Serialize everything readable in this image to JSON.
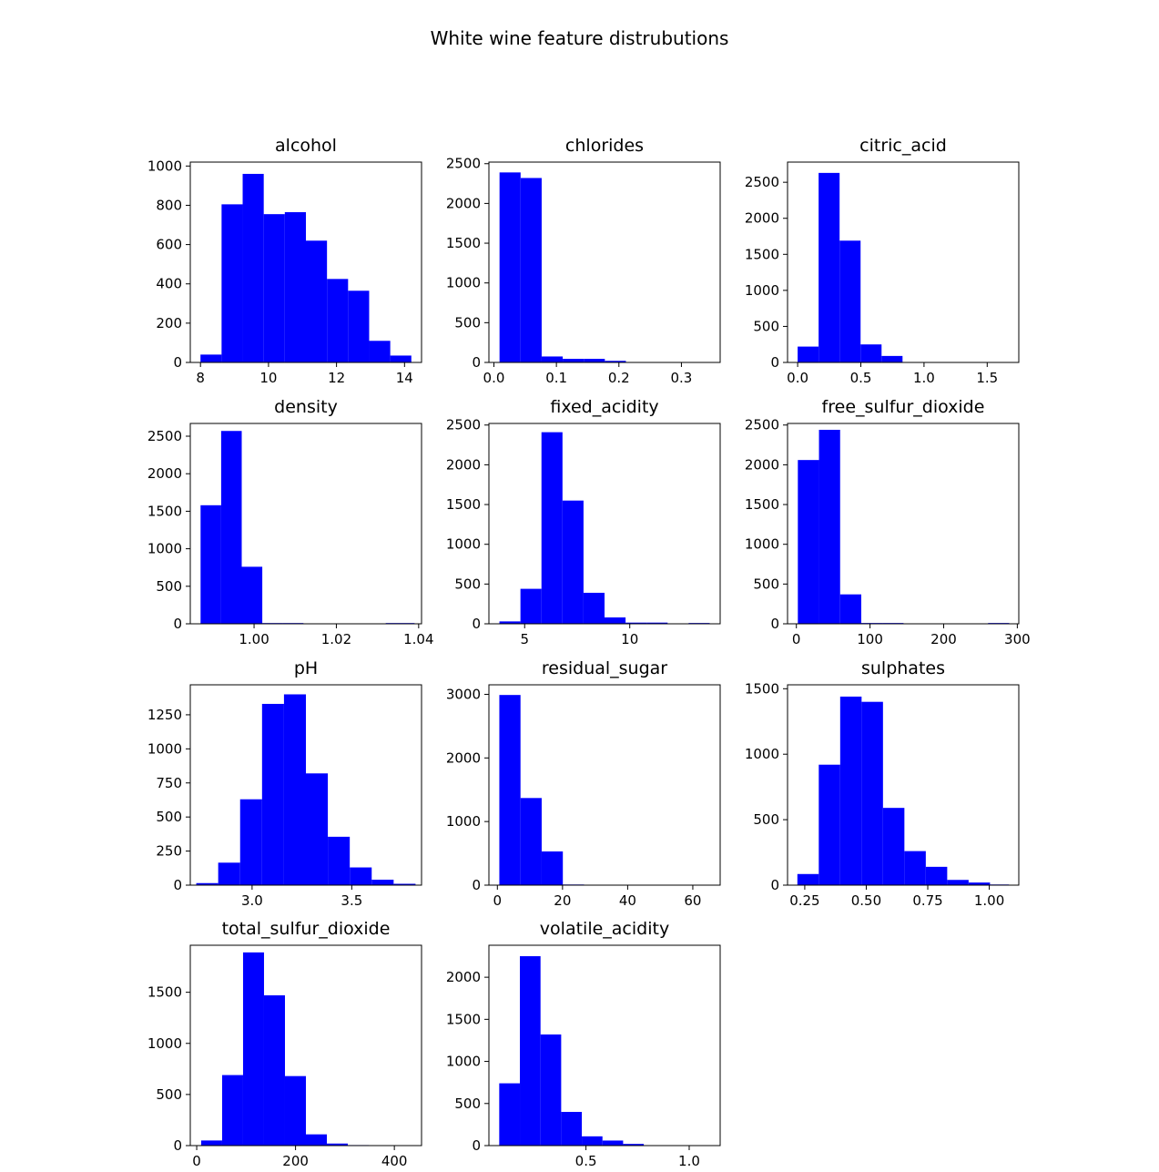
{
  "suptitle": "White wine feature distrubutions",
  "bar_color": "#0000ff",
  "chart_data": [
    {
      "type": "bar",
      "title": "alcohol",
      "xlim": [
        7.7,
        14.5
      ],
      "ylim": [
        0,
        1020
      ],
      "xticks": [
        8,
        10,
        12,
        14
      ],
      "xticklabels": [
        "8",
        "10",
        "12",
        "14"
      ],
      "yticks": [
        0,
        200,
        400,
        600,
        800,
        1000
      ],
      "yticklabels": [
        "0",
        "200",
        "400",
        "600",
        "800",
        "1000"
      ],
      "bin_edges": [
        8.0,
        8.62,
        9.24,
        9.86,
        10.48,
        11.1,
        11.72,
        12.34,
        12.96,
        13.58,
        14.2
      ],
      "values": [
        40,
        805,
        960,
        755,
        765,
        620,
        425,
        365,
        110,
        35
      ]
    },
    {
      "type": "bar",
      "title": "chlorides",
      "xlim": [
        -0.008,
        0.362
      ],
      "ylim": [
        0,
        2520
      ],
      "xticks": [
        0.0,
        0.1,
        0.2,
        0.3
      ],
      "xticklabels": [
        "0.0",
        "0.1",
        "0.2",
        "0.3"
      ],
      "yticks": [
        0,
        500,
        1000,
        1500,
        2000,
        2500
      ],
      "yticklabels": [
        "0",
        "500",
        "1000",
        "1500",
        "2000",
        "2500"
      ],
      "bin_edges": [
        0.009,
        0.0427,
        0.0764,
        0.1101,
        0.1438,
        0.1775,
        0.2112,
        0.2449,
        0.2786,
        0.3123,
        0.346
      ],
      "values": [
        2390,
        2320,
        75,
        45,
        45,
        20,
        5,
        2,
        2,
        2
      ]
    },
    {
      "type": "bar",
      "title": "citric_acid",
      "xlim": [
        -0.08,
        1.75
      ],
      "ylim": [
        0,
        2780
      ],
      "xticks": [
        0.0,
        0.5,
        1.0,
        1.5
      ],
      "xticklabels": [
        "0.0",
        "0.5",
        "1.0",
        "1.5"
      ],
      "yticks": [
        0,
        500,
        1000,
        1500,
        2000,
        2500
      ],
      "yticklabels": [
        "0",
        "500",
        "1000",
        "1500",
        "2000",
        "2500"
      ],
      "bin_edges": [
        0.0,
        0.166,
        0.332,
        0.498,
        0.664,
        0.83,
        0.996,
        1.162,
        1.328,
        1.494,
        1.66
      ],
      "values": [
        220,
        2630,
        1690,
        250,
        90,
        5,
        3,
        2,
        2,
        2
      ]
    },
    {
      "type": "bar",
      "title": "density",
      "xlim": [
        0.9845,
        1.0407
      ],
      "ylim": [
        0,
        2670
      ],
      "xticks": [
        1.0,
        1.02,
        1.04
      ],
      "xticklabels": [
        "1.00",
        "1.02",
        "1.04"
      ],
      "yticks": [
        0,
        500,
        1000,
        1500,
        2000,
        2500
      ],
      "yticklabels": [
        "0",
        "500",
        "1000",
        "1500",
        "2000",
        "2500"
      ],
      "bin_edges": [
        0.987,
        0.992,
        0.997,
        1.002,
        1.007,
        1.012,
        1.017,
        1.022,
        1.027,
        1.032,
        1.039
      ],
      "values": [
        1580,
        2570,
        760,
        10,
        10,
        0,
        0,
        0,
        0,
        10
      ]
    },
    {
      "type": "bar",
      "title": "fixed_acidity",
      "xlim": [
        3.3,
        14.3
      ],
      "ylim": [
        0,
        2520
      ],
      "xticks": [
        5,
        10
      ],
      "xticklabels": [
        "5",
        "10"
      ],
      "yticks": [
        0,
        500,
        1000,
        1500,
        2000,
        2500
      ],
      "yticklabels": [
        "0",
        "500",
        "1000",
        "1500",
        "2000",
        "2500"
      ],
      "bin_edges": [
        3.8,
        4.8,
        5.8,
        6.8,
        7.8,
        8.8,
        9.8,
        10.8,
        11.8,
        12.8,
        13.8
      ],
      "values": [
        30,
        440,
        2410,
        1550,
        390,
        80,
        15,
        15,
        5,
        10
      ]
    },
    {
      "type": "bar",
      "title": "free_sulfur_dioxide",
      "xlim": [
        -12,
        302
      ],
      "ylim": [
        0,
        2520
      ],
      "xticks": [
        0,
        100,
        200,
        300
      ],
      "xticklabels": [
        "0",
        "100",
        "200",
        "300"
      ],
      "yticks": [
        0,
        500,
        1000,
        1500,
        2000,
        2500
      ],
      "yticklabels": [
        "0",
        "500",
        "1000",
        "1500",
        "2000",
        "2500"
      ],
      "bin_edges": [
        2.0,
        30.7,
        59.4,
        88.1,
        116.8,
        145.5,
        174.2,
        202.9,
        231.6,
        260.3,
        289.0
      ],
      "values": [
        2060,
        2440,
        370,
        10,
        10,
        2,
        2,
        0,
        0,
        10
      ]
    },
    {
      "type": "bar",
      "title": "pH",
      "xlim": [
        2.69,
        3.85
      ],
      "ylim": [
        0,
        1470
      ],
      "xticks": [
        3.0,
        3.5
      ],
      "xticklabels": [
        "3.0",
        "3.5"
      ],
      "yticks": [
        0,
        250,
        500,
        750,
        1000,
        1250
      ],
      "yticklabels": [
        "0",
        "250",
        "500",
        "750",
        "1000",
        "1250"
      ],
      "bin_edges": [
        2.72,
        2.83,
        2.94,
        3.05,
        3.16,
        3.27,
        3.38,
        3.49,
        3.6,
        3.71,
        3.82
      ],
      "values": [
        15,
        165,
        630,
        1330,
        1400,
        820,
        355,
        130,
        40,
        10
      ]
    },
    {
      "type": "bar",
      "title": "residual_sugar",
      "xlim": [
        -2.6,
        68.4
      ],
      "ylim": [
        0,
        3150
      ],
      "xticks": [
        0,
        20,
        40,
        60
      ],
      "xticklabels": [
        "0",
        "20",
        "40",
        "60"
      ],
      "yticks": [
        0,
        1000,
        2000,
        3000
      ],
      "yticklabels": [
        "0",
        "1000",
        "2000",
        "3000"
      ],
      "bin_edges": [
        0.6,
        7.1,
        13.6,
        20.1,
        26.6,
        33.1,
        39.6,
        46.1,
        52.6,
        59.1,
        65.8
      ],
      "values": [
        2990,
        1370,
        530,
        10,
        5,
        3,
        0,
        0,
        0,
        2
      ]
    },
    {
      "type": "bar",
      "title": "sulphates",
      "xlim": [
        0.18,
        1.12
      ],
      "ylim": [
        0,
        1530
      ],
      "xticks": [
        0.25,
        0.5,
        0.75,
        1.0
      ],
      "xticklabels": [
        "0.25",
        "0.50",
        "0.75",
        "1.00"
      ],
      "yticks": [
        0,
        500,
        1000,
        1500
      ],
      "yticklabels": [
        "0",
        "500",
        "1000",
        "1500"
      ],
      "bin_edges": [
        0.22,
        0.307,
        0.394,
        0.481,
        0.568,
        0.655,
        0.742,
        0.829,
        0.916,
        1.003,
        1.08
      ],
      "values": [
        85,
        920,
        1440,
        1400,
        590,
        260,
        140,
        40,
        20,
        5
      ]
    },
    {
      "type": "bar",
      "title": "total_sulfur_dioxide",
      "xlim": [
        -13,
        455
      ],
      "ylim": [
        0,
        1960
      ],
      "xticks": [
        0,
        200,
        400
      ],
      "xticklabels": [
        "0",
        "200",
        "400"
      ],
      "yticks": [
        0,
        500,
        1000,
        1500
      ],
      "yticklabels": [
        "0",
        "500",
        "1000",
        "1500"
      ],
      "bin_edges": [
        9.0,
        51.4,
        93.8,
        136.2,
        178.6,
        221.0,
        263.4,
        305.8,
        348.2,
        390.6,
        440.0
      ],
      "values": [
        50,
        690,
        1890,
        1470,
        680,
        110,
        20,
        5,
        2,
        2
      ]
    },
    {
      "type": "bar",
      "title": "volatile_acidity",
      "xlim": [
        0.03,
        1.15
      ],
      "ylim": [
        0,
        2380
      ],
      "xticks": [
        0.5,
        1.0
      ],
      "xticklabels": [
        "0.5",
        "1.0"
      ],
      "yticks": [
        0,
        500,
        1000,
        1500,
        2000
      ],
      "yticklabels": [
        "0",
        "500",
        "1000",
        "1500",
        "2000"
      ],
      "bin_edges": [
        0.08,
        0.18,
        0.28,
        0.38,
        0.48,
        0.58,
        0.68,
        0.78,
        0.88,
        0.98,
        1.1
      ],
      "values": [
        740,
        2250,
        1320,
        400,
        110,
        60,
        20,
        5,
        5,
        2
      ]
    }
  ]
}
